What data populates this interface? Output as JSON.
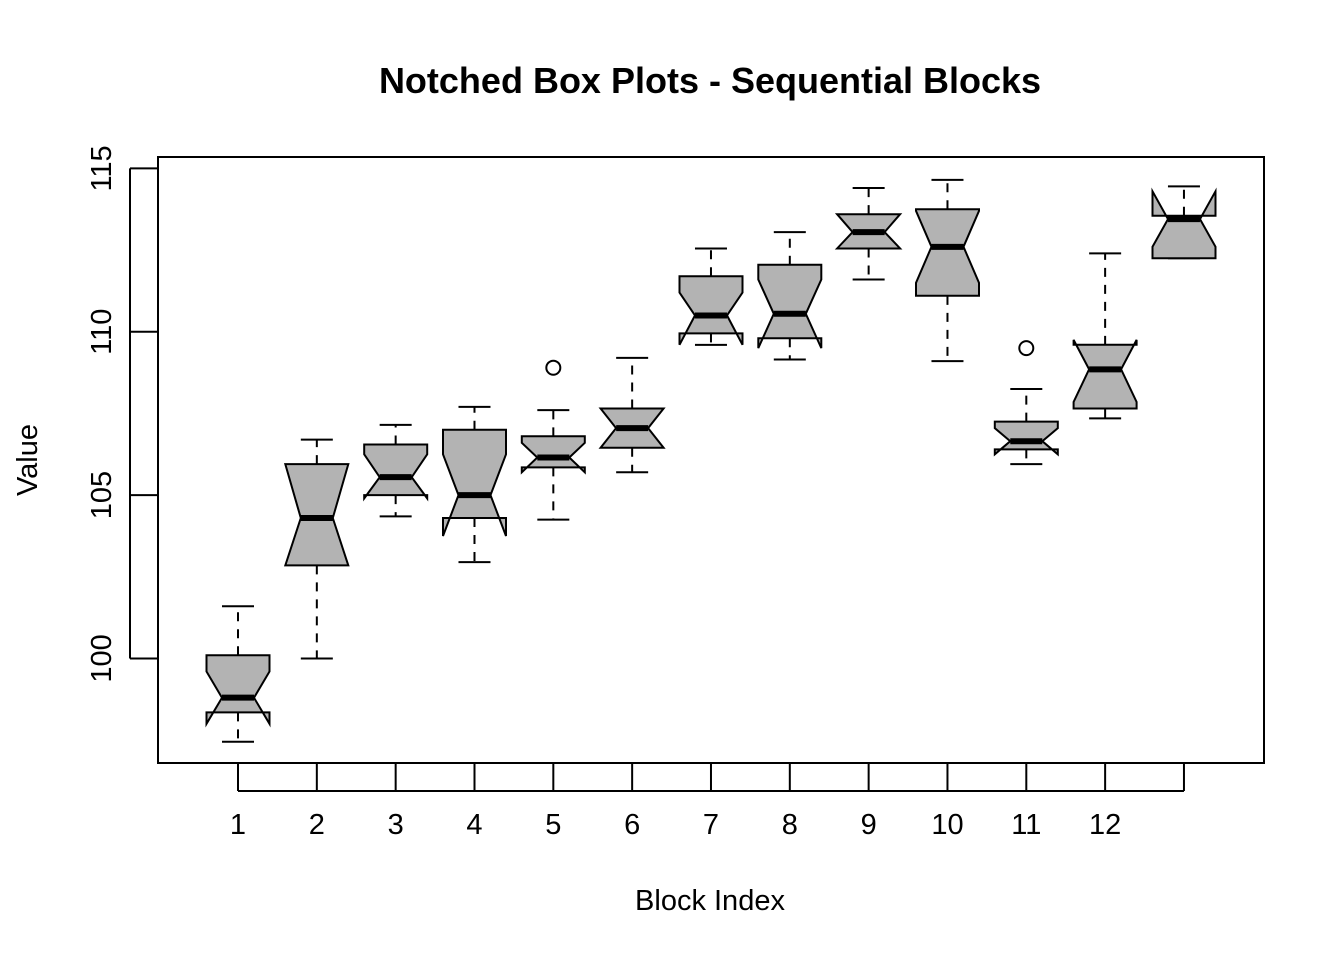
{
  "chart_data": {
    "type": "boxplot",
    "title": "Notched Box Plots - Sequential Blocks",
    "xlabel": "Block Index",
    "ylabel": "Value",
    "ylim": [
      96.8,
      115.35
    ],
    "y_ticks": [
      100,
      105,
      110,
      115
    ],
    "x_tick_labels": [
      "1",
      "2",
      "3",
      "4",
      "5",
      "6",
      "7",
      "8",
      "9",
      "10",
      "11",
      "12",
      ""
    ],
    "box_color": "#b3b3b3",
    "notched": true,
    "boxes": [
      {
        "lower_whisker": 97.45,
        "q1": 98.35,
        "median": 98.8,
        "q3": 100.1,
        "upper_whisker": 101.6,
        "notch_lower": 98.0,
        "notch_upper": 99.6,
        "outliers": []
      },
      {
        "lower_whisker": 100.0,
        "q1": 102.85,
        "median": 104.3,
        "q3": 105.95,
        "upper_whisker": 106.7,
        "notch_lower": 102.85,
        "notch_upper": 105.95,
        "outliers": []
      },
      {
        "lower_whisker": 104.35,
        "q1": 105.0,
        "median": 105.55,
        "q3": 106.55,
        "upper_whisker": 107.15,
        "notch_lower": 104.9,
        "notch_upper": 106.25,
        "outliers": []
      },
      {
        "lower_whisker": 102.95,
        "q1": 104.3,
        "median": 105.0,
        "q3": 107.0,
        "upper_whisker": 107.7,
        "notch_lower": 103.75,
        "notch_upper": 106.25,
        "outliers": []
      },
      {
        "lower_whisker": 104.25,
        "q1": 105.85,
        "median": 106.15,
        "q3": 106.8,
        "upper_whisker": 107.6,
        "notch_lower": 105.7,
        "notch_upper": 106.6,
        "outliers": [
          108.9
        ]
      },
      {
        "lower_whisker": 105.7,
        "q1": 106.45,
        "median": 107.05,
        "q3": 107.65,
        "upper_whisker": 109.2,
        "notch_lower": 106.45,
        "notch_upper": 107.65,
        "outliers": []
      },
      {
        "lower_whisker": 109.6,
        "q1": 109.95,
        "median": 110.5,
        "q3": 111.7,
        "upper_whisker": 112.55,
        "notch_lower": 109.6,
        "notch_upper": 111.2,
        "outliers": []
      },
      {
        "lower_whisker": 109.15,
        "q1": 109.8,
        "median": 110.55,
        "q3": 112.05,
        "upper_whisker": 113.05,
        "notch_lower": 109.5,
        "notch_upper": 111.6,
        "outliers": []
      },
      {
        "lower_whisker": 111.6,
        "q1": 112.55,
        "median": 113.05,
        "q3": 113.6,
        "upper_whisker": 114.4,
        "notch_lower": 112.55,
        "notch_upper": 113.6,
        "outliers": []
      },
      {
        "lower_whisker": 109.1,
        "q1": 111.1,
        "median": 112.6,
        "q3": 113.75,
        "upper_whisker": 114.65,
        "notch_lower": 111.5,
        "notch_upper": 113.7,
        "outliers": []
      },
      {
        "lower_whisker": 105.95,
        "q1": 106.4,
        "median": 106.65,
        "q3": 107.25,
        "upper_whisker": 108.25,
        "notch_lower": 106.25,
        "notch_upper": 107.05,
        "outliers": [
          109.5
        ]
      },
      {
        "lower_whisker": 107.35,
        "q1": 107.65,
        "median": 108.85,
        "q3": 109.6,
        "upper_whisker": 112.4,
        "notch_lower": 107.85,
        "notch_upper": 109.75,
        "outliers": []
      },
      {
        "lower_whisker": 112.25,
        "q1": 112.25,
        "median": 113.45,
        "q3": 113.55,
        "upper_whisker": 114.45,
        "notch_lower": 112.6,
        "notch_upper": 114.3,
        "outliers": []
      }
    ]
  }
}
